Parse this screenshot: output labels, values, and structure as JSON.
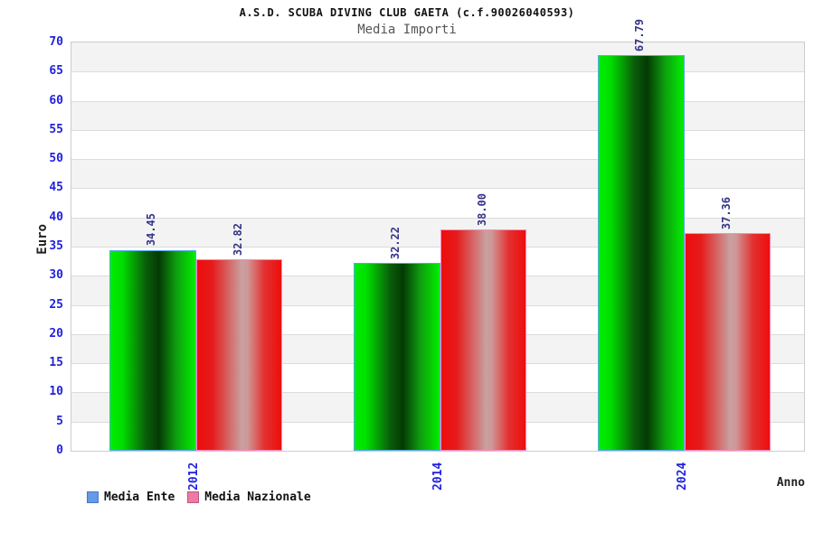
{
  "title": "A.S.D. SCUBA DIVING CLUB GAETA (c.f.90026040593)",
  "subtitle": "Media Importi",
  "chart_data": {
    "type": "bar",
    "categories": [
      "2012",
      "2014",
      "2024"
    ],
    "series": [
      {
        "name": "Media Ente",
        "values": [
          34.45,
          32.22,
          67.79
        ],
        "bar_color_bright": "#00ee00",
        "bar_color_dark": "#043a04",
        "bar_border_color": "#55aaee",
        "legend_color": "#6699e6",
        "legend_border_color": "#4477cc"
      },
      {
        "name": "Media Nazionale",
        "values": [
          32.82,
          38.0,
          37.36
        ],
        "bar_color_bright": "#ee0d0d",
        "bar_color_light": "#c9a0a0",
        "bar_border_color": "#ff88bb",
        "legend_color": "#ec7ba4",
        "legend_border_color": "#c05585"
      }
    ],
    "value_label_decimals": 2,
    "xlabel": "Anno",
    "ylabel": "Euro",
    "ylim": [
      0,
      70
    ],
    "ytick_step": 5,
    "grid": "horizontal-bands-alternating",
    "legend_position": "bottom-left"
  },
  "colors": {
    "tick_label": "#2222dd",
    "value_label": "#333388",
    "band_gray": "#f3f3f3",
    "band_white": "#ffffff",
    "grid_line": "#dcdcdc",
    "plot_border": "#cccccc",
    "subtitle_text": "#555555",
    "axis_title_text": "#222222"
  }
}
